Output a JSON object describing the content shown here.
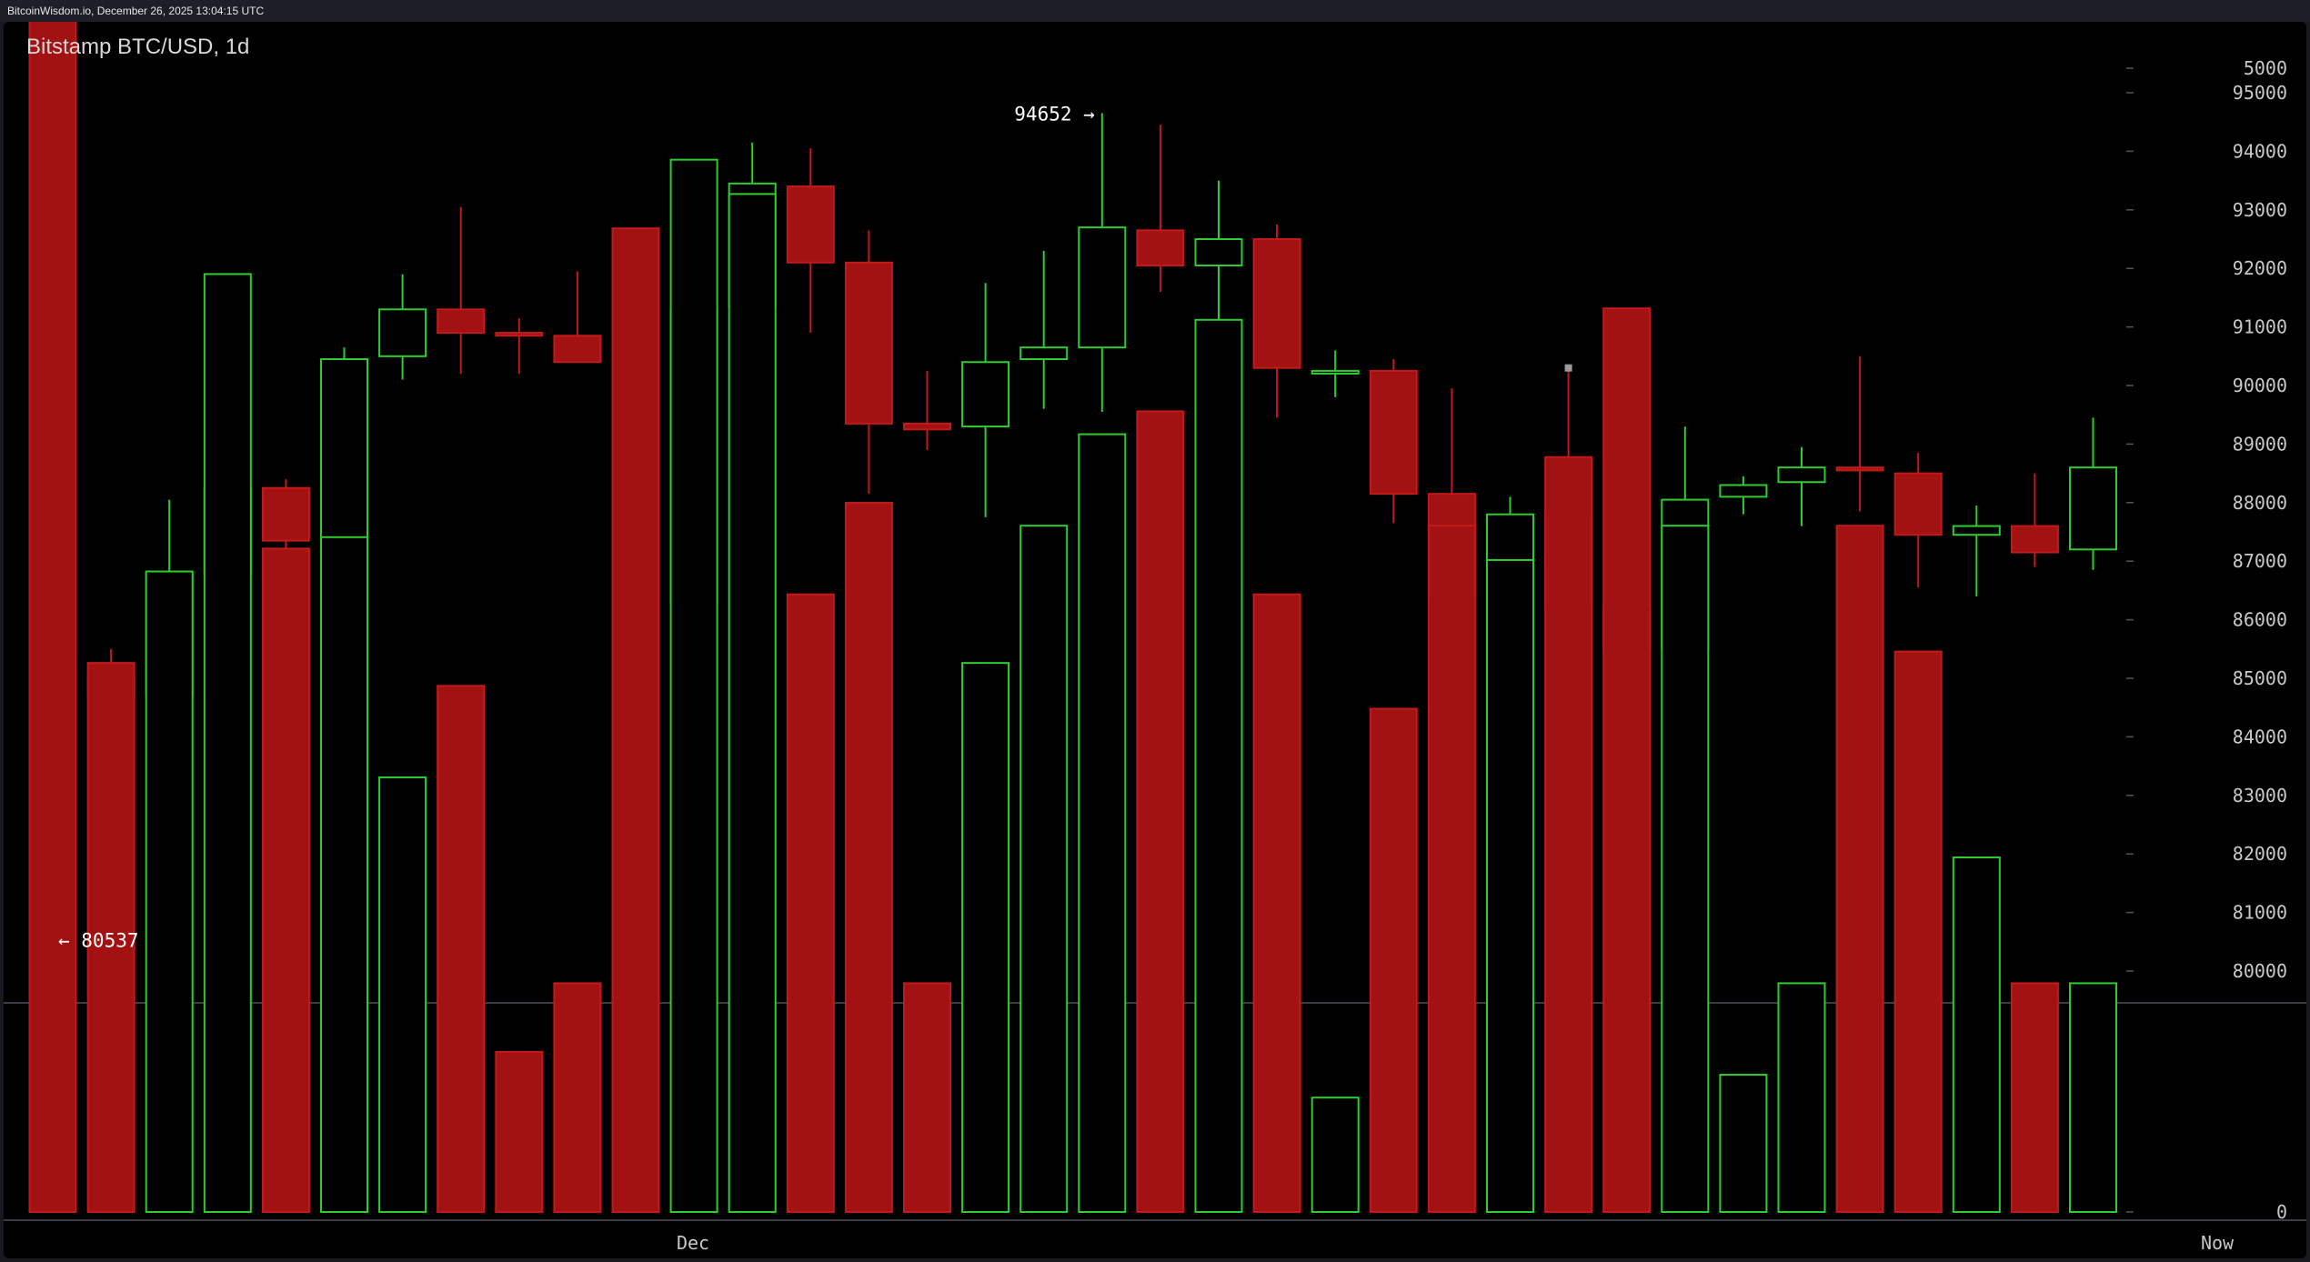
{
  "source_label": "BitcoinWisdom.io, December 26, 2025 13:04:15 UTC",
  "chart_title": "Bitstamp BTC/USD, 1d",
  "colors": {
    "up": "#2ecc2e",
    "down": "#a31212",
    "down_stroke": "#c21a1a",
    "background": "#000000",
    "axis_text": "#c8c8c8",
    "marker": "#9a9a9a"
  },
  "annotations": {
    "high_label": "94652 →",
    "low_label": "← 80537"
  },
  "chart_data": {
    "type": "candlestick",
    "title": "Bitstamp BTC/USD, 1d",
    "price_axis": {
      "ticks": [
        80000,
        81000,
        82000,
        83000,
        84000,
        85000,
        86000,
        87000,
        88000,
        89000,
        90000,
        91000,
        92000,
        93000,
        94000,
        95000
      ]
    },
    "volume_axis": {
      "ticks": [
        0,
        5000
      ]
    },
    "x_labels": [
      "Dec",
      "Now"
    ],
    "annotations": [
      {
        "text": "94652 →",
        "value": 94652
      },
      {
        "text": "← 80537",
        "value": 80537
      }
    ],
    "marker": {
      "index": 26,
      "value": 90300
    },
    "candles": [
      {
        "o": 86500,
        "h": 87400,
        "l": 80537,
        "c": 85100,
        "v": 8500
      },
      {
        "o": 85050,
        "h": 85500,
        "l": 83400,
        "c": 84700,
        "v": 2400
      },
      {
        "o": 84700,
        "h": 88050,
        "l": 84650,
        "c": 86800,
        "v": 2800
      },
      {
        "o": 86800,
        "h": 89200,
        "l": 85200,
        "c": 88250,
        "v": 4100
      },
      {
        "o": 88250,
        "h": 88400,
        "l": 86050,
        "c": 87350,
        "v": 2900
      },
      {
        "o": 87350,
        "h": 90650,
        "l": 86300,
        "c": 90450,
        "v": 2950
      },
      {
        "o": 90500,
        "h": 91900,
        "l": 90100,
        "c": 91300,
        "v": 1900
      },
      {
        "o": 91300,
        "h": 93050,
        "l": 90200,
        "c": 90900,
        "v": 2300
      },
      {
        "o": 90900,
        "h": 91150,
        "l": 90200,
        "c": 90850,
        "v": 700
      },
      {
        "o": 90850,
        "h": 91950,
        "l": 90400,
        "c": 90400,
        "v": 1000
      },
      {
        "o": 90350,
        "h": 90400,
        "l": 83800,
        "c": 86300,
        "v": 4300
      },
      {
        "o": 86300,
        "h": 92300,
        "l": 86200,
        "c": 91300,
        "v": 4600
      },
      {
        "o": 91350,
        "h": 94150,
        "l": 91050,
        "c": 93450,
        "v": 4450
      },
      {
        "o": 93400,
        "h": 94050,
        "l": 90900,
        "c": 92100,
        "v": 2700
      },
      {
        "o": 92100,
        "h": 92650,
        "l": 88150,
        "c": 89350,
        "v": 3100
      },
      {
        "o": 89350,
        "h": 90250,
        "l": 88900,
        "c": 89250,
        "v": 1000
      },
      {
        "o": 89300,
        "h": 91750,
        "l": 87750,
        "c": 90400,
        "v": 2400
      },
      {
        "o": 90450,
        "h": 92300,
        "l": 89600,
        "c": 90650,
        "v": 3000
      },
      {
        "o": 90650,
        "h": 94652,
        "l": 89550,
        "c": 92700,
        "v": 3400
      },
      {
        "o": 92650,
        "h": 94450,
        "l": 91600,
        "c": 92050,
        "v": 3500
      },
      {
        "o": 92050,
        "h": 93500,
        "l": 89250,
        "c": 92500,
        "v": 3900
      },
      {
        "o": 92500,
        "h": 92750,
        "l": 89450,
        "c": 90300,
        "v": 2700
      },
      {
        "o": 90250,
        "h": 90600,
        "l": 89800,
        "c": 90250,
        "v": 500
      },
      {
        "o": 90250,
        "h": 90450,
        "l": 87650,
        "c": 88150,
        "v": 2200
      },
      {
        "o": 88150,
        "h": 89950,
        "l": 85150,
        "c": 86400,
        "v": 3000
      },
      {
        "o": 86400,
        "h": 88100,
        "l": 85250,
        "c": 87800,
        "v": 2850
      },
      {
        "o": 87800,
        "h": 90300,
        "l": 85300,
        "c": 86250,
        "v": 3300
      },
      {
        "o": 86200,
        "h": 89400,
        "l": 84400,
        "c": 85500,
        "v": 3950
      },
      {
        "o": 85500,
        "h": 89300,
        "l": 85050,
        "c": 88050,
        "v": 3000
      },
      {
        "o": 88100,
        "h": 88450,
        "l": 87800,
        "c": 88300,
        "v": 600
      },
      {
        "o": 88350,
        "h": 88950,
        "l": 87600,
        "c": 88600,
        "v": 1000
      },
      {
        "o": 88600,
        "h": 90500,
        "l": 87850,
        "c": 88550,
        "v": 3000
      },
      {
        "o": 88500,
        "h": 88850,
        "l": 86550,
        "c": 87450,
        "v": 2450
      },
      {
        "o": 87450,
        "h": 87950,
        "l": 86400,
        "c": 87600,
        "v": 1550
      },
      {
        "o": 87600,
        "h": 88500,
        "l": 86900,
        "c": 87150,
        "v": 1000
      },
      {
        "o": 87200,
        "h": 89450,
        "l": 86850,
        "c": 88600,
        "v": 1000
      }
    ]
  }
}
